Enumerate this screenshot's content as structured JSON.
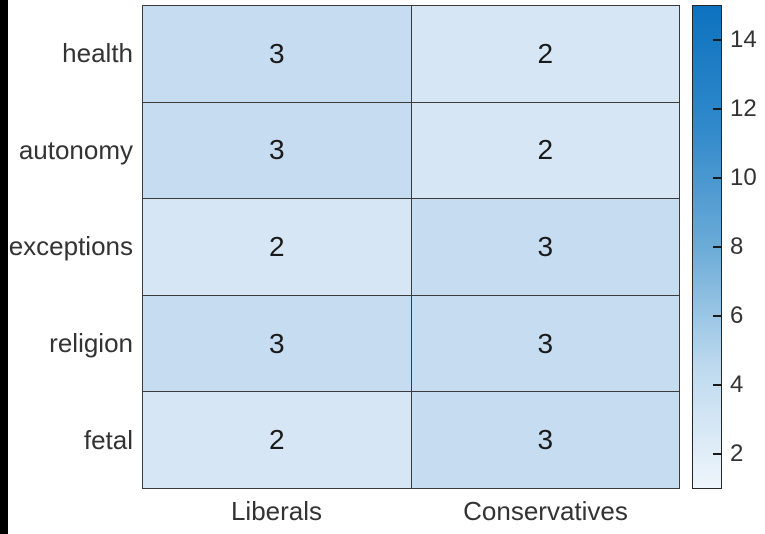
{
  "page": {
    "background": "#ffffff",
    "window_edge_color": "#000000"
  },
  "chart_data": {
    "type": "heatmap",
    "title": "",
    "xlabel": "",
    "ylabel": "",
    "rows": [
      "health",
      "autonomy",
      "exceptions",
      "religion",
      "fetal"
    ],
    "columns": [
      "Liberals",
      "Conservatives"
    ],
    "values": [
      [
        3,
        2
      ],
      [
        3,
        2
      ],
      [
        2,
        3
      ],
      [
        3,
        3
      ],
      [
        2,
        3
      ]
    ],
    "value_colors": {
      "2": "#d7e6f5",
      "3": "#c6dcf0"
    },
    "colorbar": {
      "min": 1,
      "max": 15,
      "ticks": [
        2,
        4,
        6,
        8,
        10,
        12,
        14
      ],
      "gradient_bottom_to_top": [
        "#eef5fb",
        "#bedaef",
        "#6babd7",
        "#3089cb",
        "#0d72bf"
      ],
      "position": "right"
    },
    "grid": true,
    "grid_color": "#3b3b3b",
    "text_color": "#333333",
    "cell_text_color": "#1a1a1a"
  }
}
